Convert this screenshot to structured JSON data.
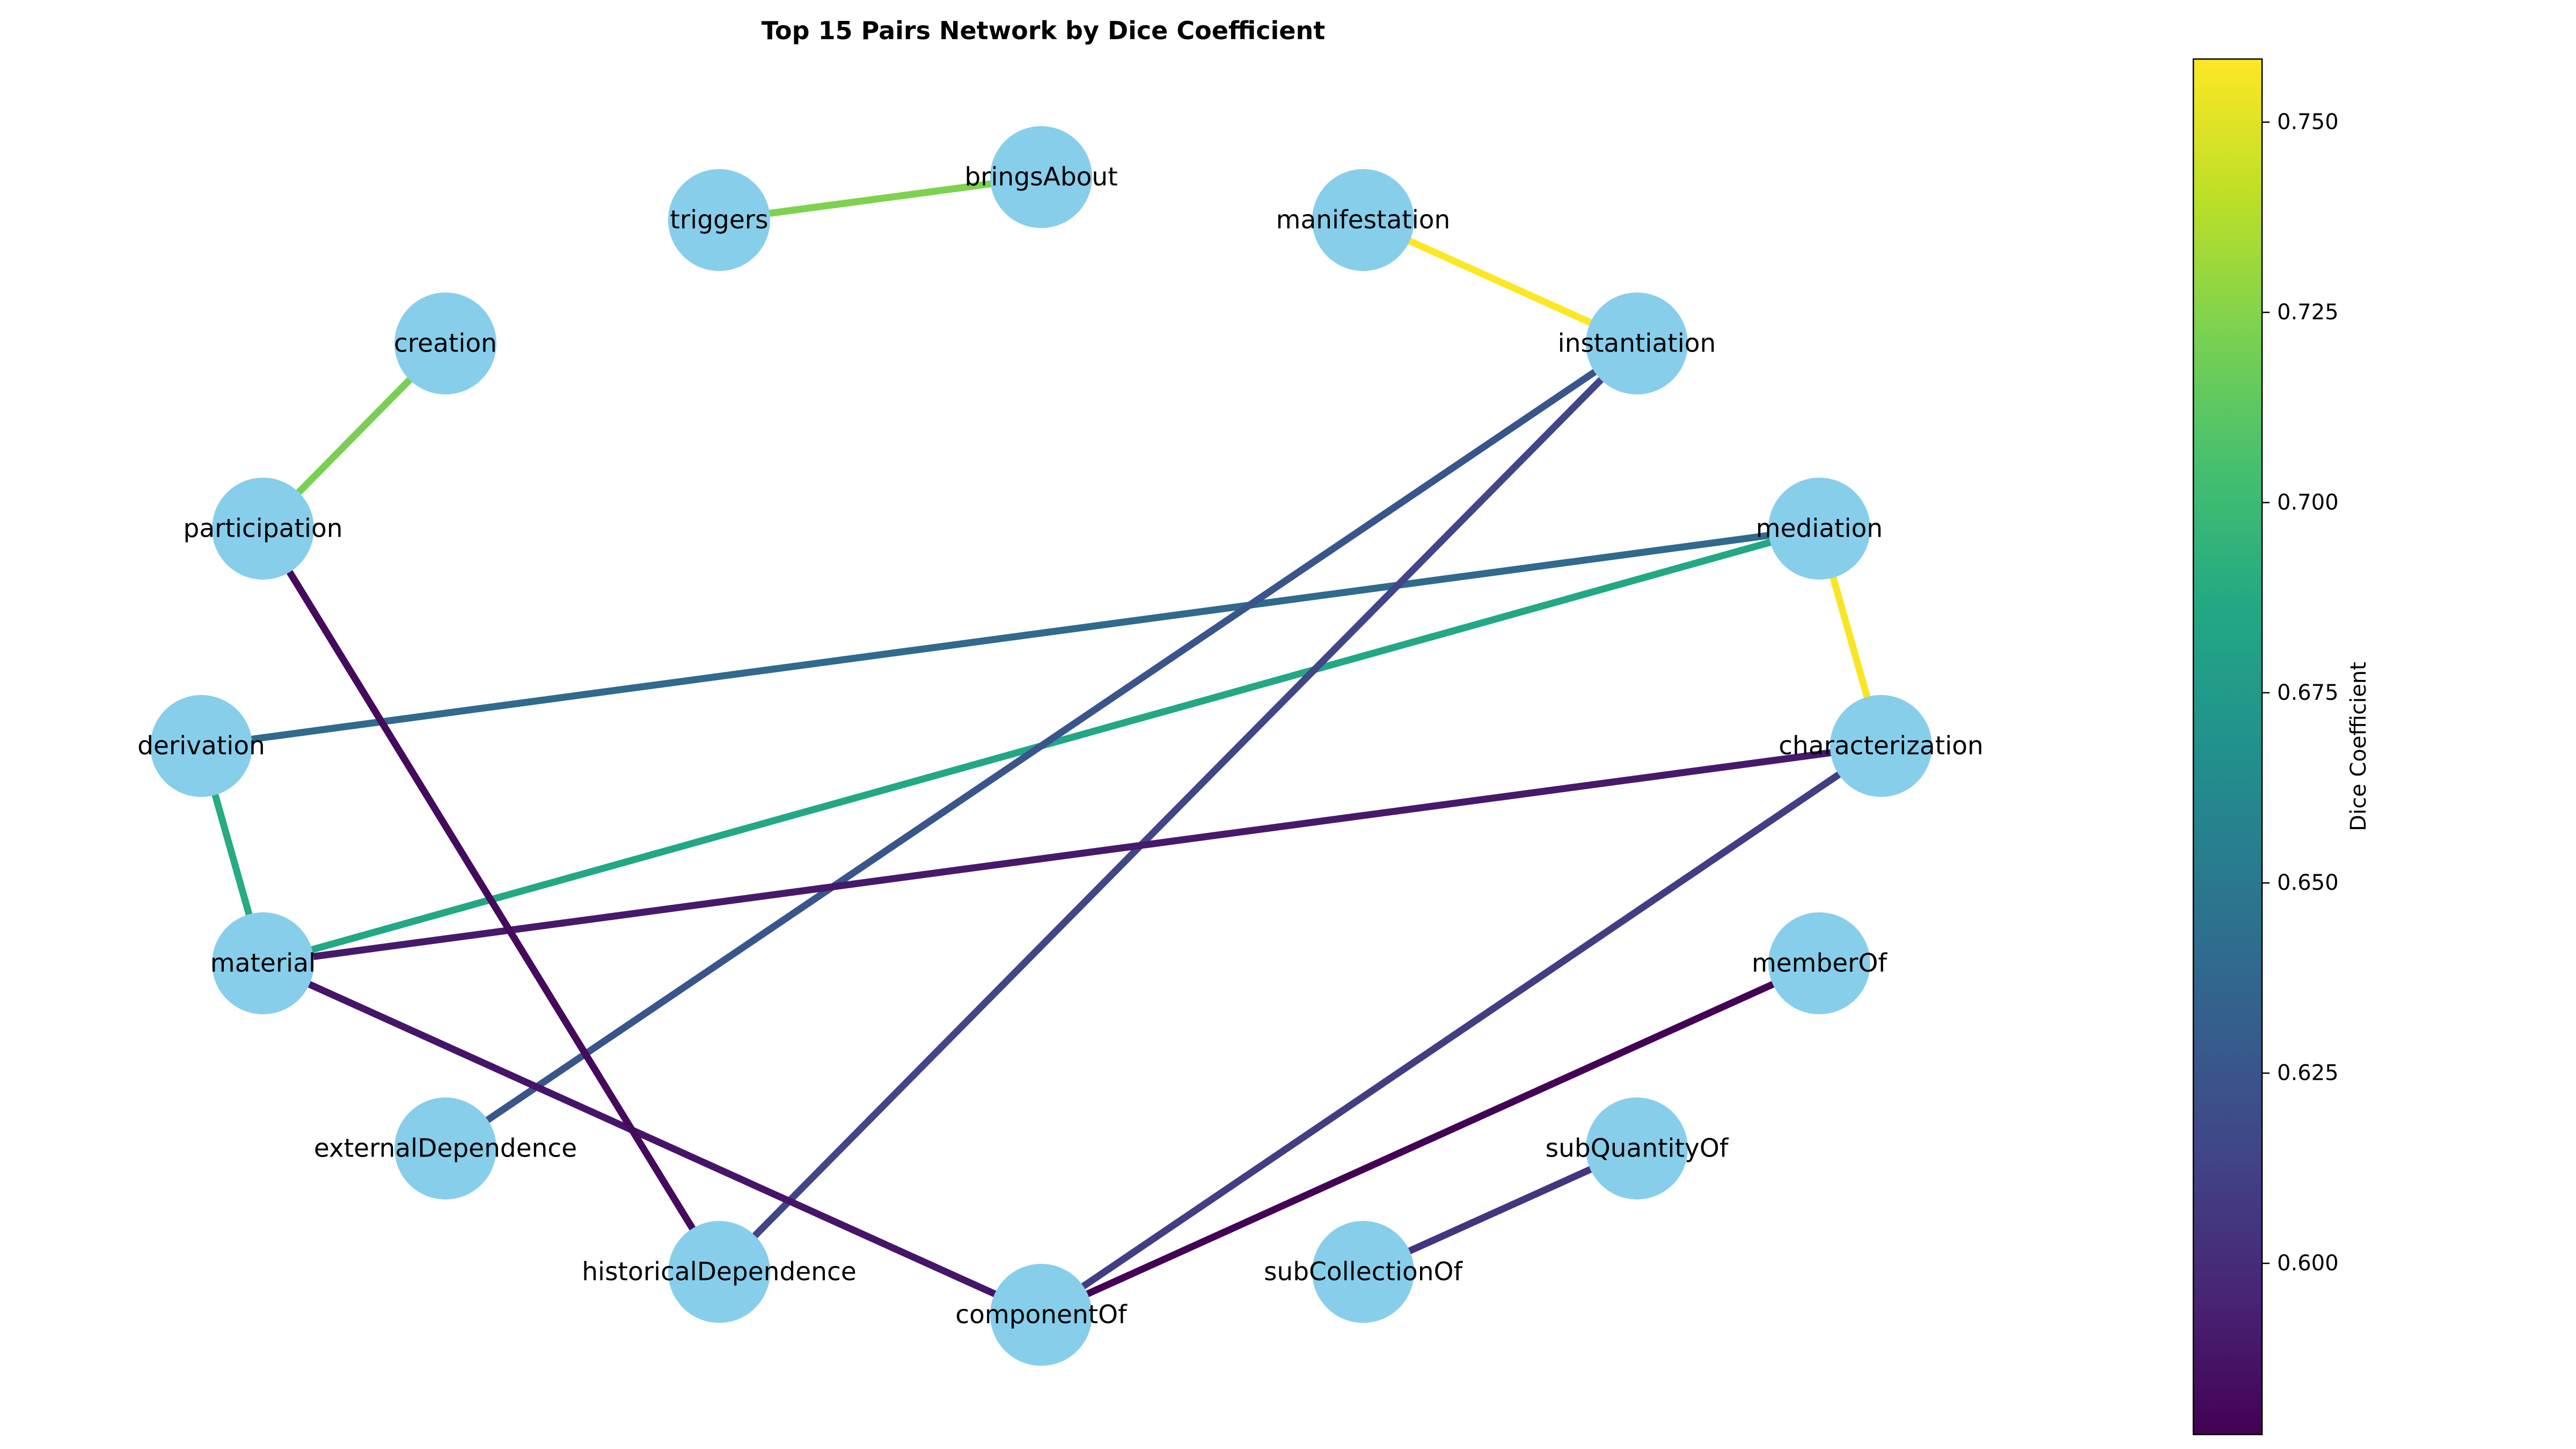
{
  "title": "Top 15 Pairs Network by Dice Coefficient",
  "colorbar": {
    "label": "Dice Coefficient",
    "min": 0.5775,
    "max": 0.7583,
    "colormap": "viridis",
    "ticks": [
      "0.600",
      "0.625",
      "0.650",
      "0.675",
      "0.700",
      "0.725",
      "0.750"
    ]
  },
  "colors": {
    "node_fill": "#87ceeb",
    "background": "#ffffff"
  },
  "nodes": [
    "bringsAbout",
    "triggers",
    "manifestation",
    "instantiation",
    "creation",
    "participation",
    "mediation",
    "derivation",
    "characterization",
    "material",
    "memberOf",
    "externalDependence",
    "subQuantityOf",
    "historicalDependence",
    "subCollectionOf",
    "componentOf"
  ],
  "edges": [
    {
      "source": "manifestation",
      "target": "instantiation",
      "dice": 0.758
    },
    {
      "source": "mediation",
      "target": "characterization",
      "dice": 0.757
    },
    {
      "source": "triggers",
      "target": "bringsAbout",
      "dice": 0.723
    },
    {
      "source": "creation",
      "target": "participation",
      "dice": 0.721
    },
    {
      "source": "derivation",
      "target": "material",
      "dice": 0.688
    },
    {
      "source": "material",
      "target": "mediation",
      "dice": 0.686
    },
    {
      "source": "derivation",
      "target": "mediation",
      "dice": 0.64
    },
    {
      "source": "instantiation",
      "target": "externalDependence",
      "dice": 0.625
    },
    {
      "source": "instantiation",
      "target": "historicalDependence",
      "dice": 0.615
    },
    {
      "source": "characterization",
      "target": "componentOf",
      "dice": 0.61
    },
    {
      "source": "subQuantityOf",
      "target": "subCollectionOf",
      "dice": 0.605
    },
    {
      "source": "material",
      "target": "characterization",
      "dice": 0.59
    },
    {
      "source": "material",
      "target": "componentOf",
      "dice": 0.588
    },
    {
      "source": "participation",
      "target": "historicalDependence",
      "dice": 0.582
    },
    {
      "source": "memberOf",
      "target": "componentOf",
      "dice": 0.578
    }
  ]
}
